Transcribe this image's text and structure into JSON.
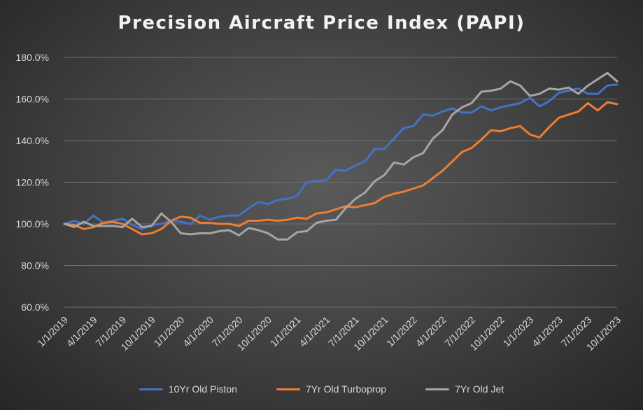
{
  "chart_data": {
    "type": "line",
    "title": "Precision Aircraft Price Index (PAPI)",
    "ylim": [
      60,
      180
    ],
    "y_ticks": [
      "60.0%",
      "80.0%",
      "100.0%",
      "120.0%",
      "140.0%",
      "160.0%",
      "180.0%"
    ],
    "x_labels": [
      "1/1/2019",
      "4/1/2019",
      "7/1/2019",
      "10/1/2019",
      "1/1/2020",
      "4/1/2020",
      "7/1/2020",
      "10/1/2020",
      "1/1/2021",
      "4/1/2021",
      "7/1/2021",
      "10/1/2021",
      "1/1/2022",
      "4/1/2022",
      "7/1/2022",
      "10/1/2022",
      "1/1/2023",
      "4/1/2023",
      "7/1/2023",
      "10/1/2023"
    ],
    "grid": true,
    "legend_position": "bottom",
    "series": [
      {
        "name": "10Yr Old Piston",
        "color": "#4472c4",
        "values": [
          100,
          101.5,
          100,
          104,
          100.5,
          101.5,
          102.5,
          99.5,
          97.5,
          99.5,
          100,
          101.5,
          101,
          100,
          104,
          102,
          103.5,
          104,
          104,
          107.5,
          110.5,
          109.5,
          111.5,
          112,
          113.5,
          120,
          120.5,
          121,
          126,
          125.5,
          128,
          130,
          136,
          136,
          141,
          146,
          147,
          152.5,
          152,
          154,
          155.5,
          153.5,
          153.5,
          156.5,
          154.5,
          156,
          157,
          158,
          160.5,
          156.5,
          159,
          163,
          164,
          165,
          162.5,
          162.5,
          166.5,
          167
        ]
      },
      {
        "name": "7Yr Old Turboprop",
        "color": "#ed7d31",
        "values": [
          100,
          99.5,
          97.5,
          98.5,
          100.5,
          101,
          100,
          97.5,
          95,
          95.5,
          97.5,
          101.5,
          103.5,
          103,
          100.5,
          100.5,
          100,
          100,
          99,
          101.5,
          101.5,
          102,
          101.5,
          102,
          103,
          102.5,
          105,
          105.5,
          107,
          108.5,
          108,
          109,
          110,
          113,
          114.5,
          115.5,
          117,
          118.5,
          122,
          125.5,
          130,
          134.5,
          136.5,
          140.5,
          145,
          144.5,
          146,
          147,
          143,
          141.5,
          146.5,
          151,
          152.5,
          154,
          158,
          154.5,
          158.5,
          157.5
        ]
      },
      {
        "name": "7Yr Old Jet",
        "color": "#a5a5a5",
        "values": [
          100,
          98.5,
          101,
          99,
          99,
          99,
          98.5,
          102.5,
          98.5,
          99,
          105,
          101,
          95.5,
          95,
          95.5,
          95.5,
          96.5,
          97,
          94.5,
          98,
          97,
          95.5,
          92.5,
          92.5,
          96,
          96.5,
          100.5,
          101.5,
          102,
          107.5,
          112,
          115,
          120.5,
          123.5,
          129.5,
          128.5,
          132,
          134,
          141,
          145,
          152.5,
          156,
          158,
          163.5,
          164,
          165,
          168.5,
          166.5,
          161.5,
          162.5,
          165,
          164.5,
          165.5,
          162.5,
          166.5,
          169.5,
          172.5,
          168.5
        ]
      }
    ]
  }
}
